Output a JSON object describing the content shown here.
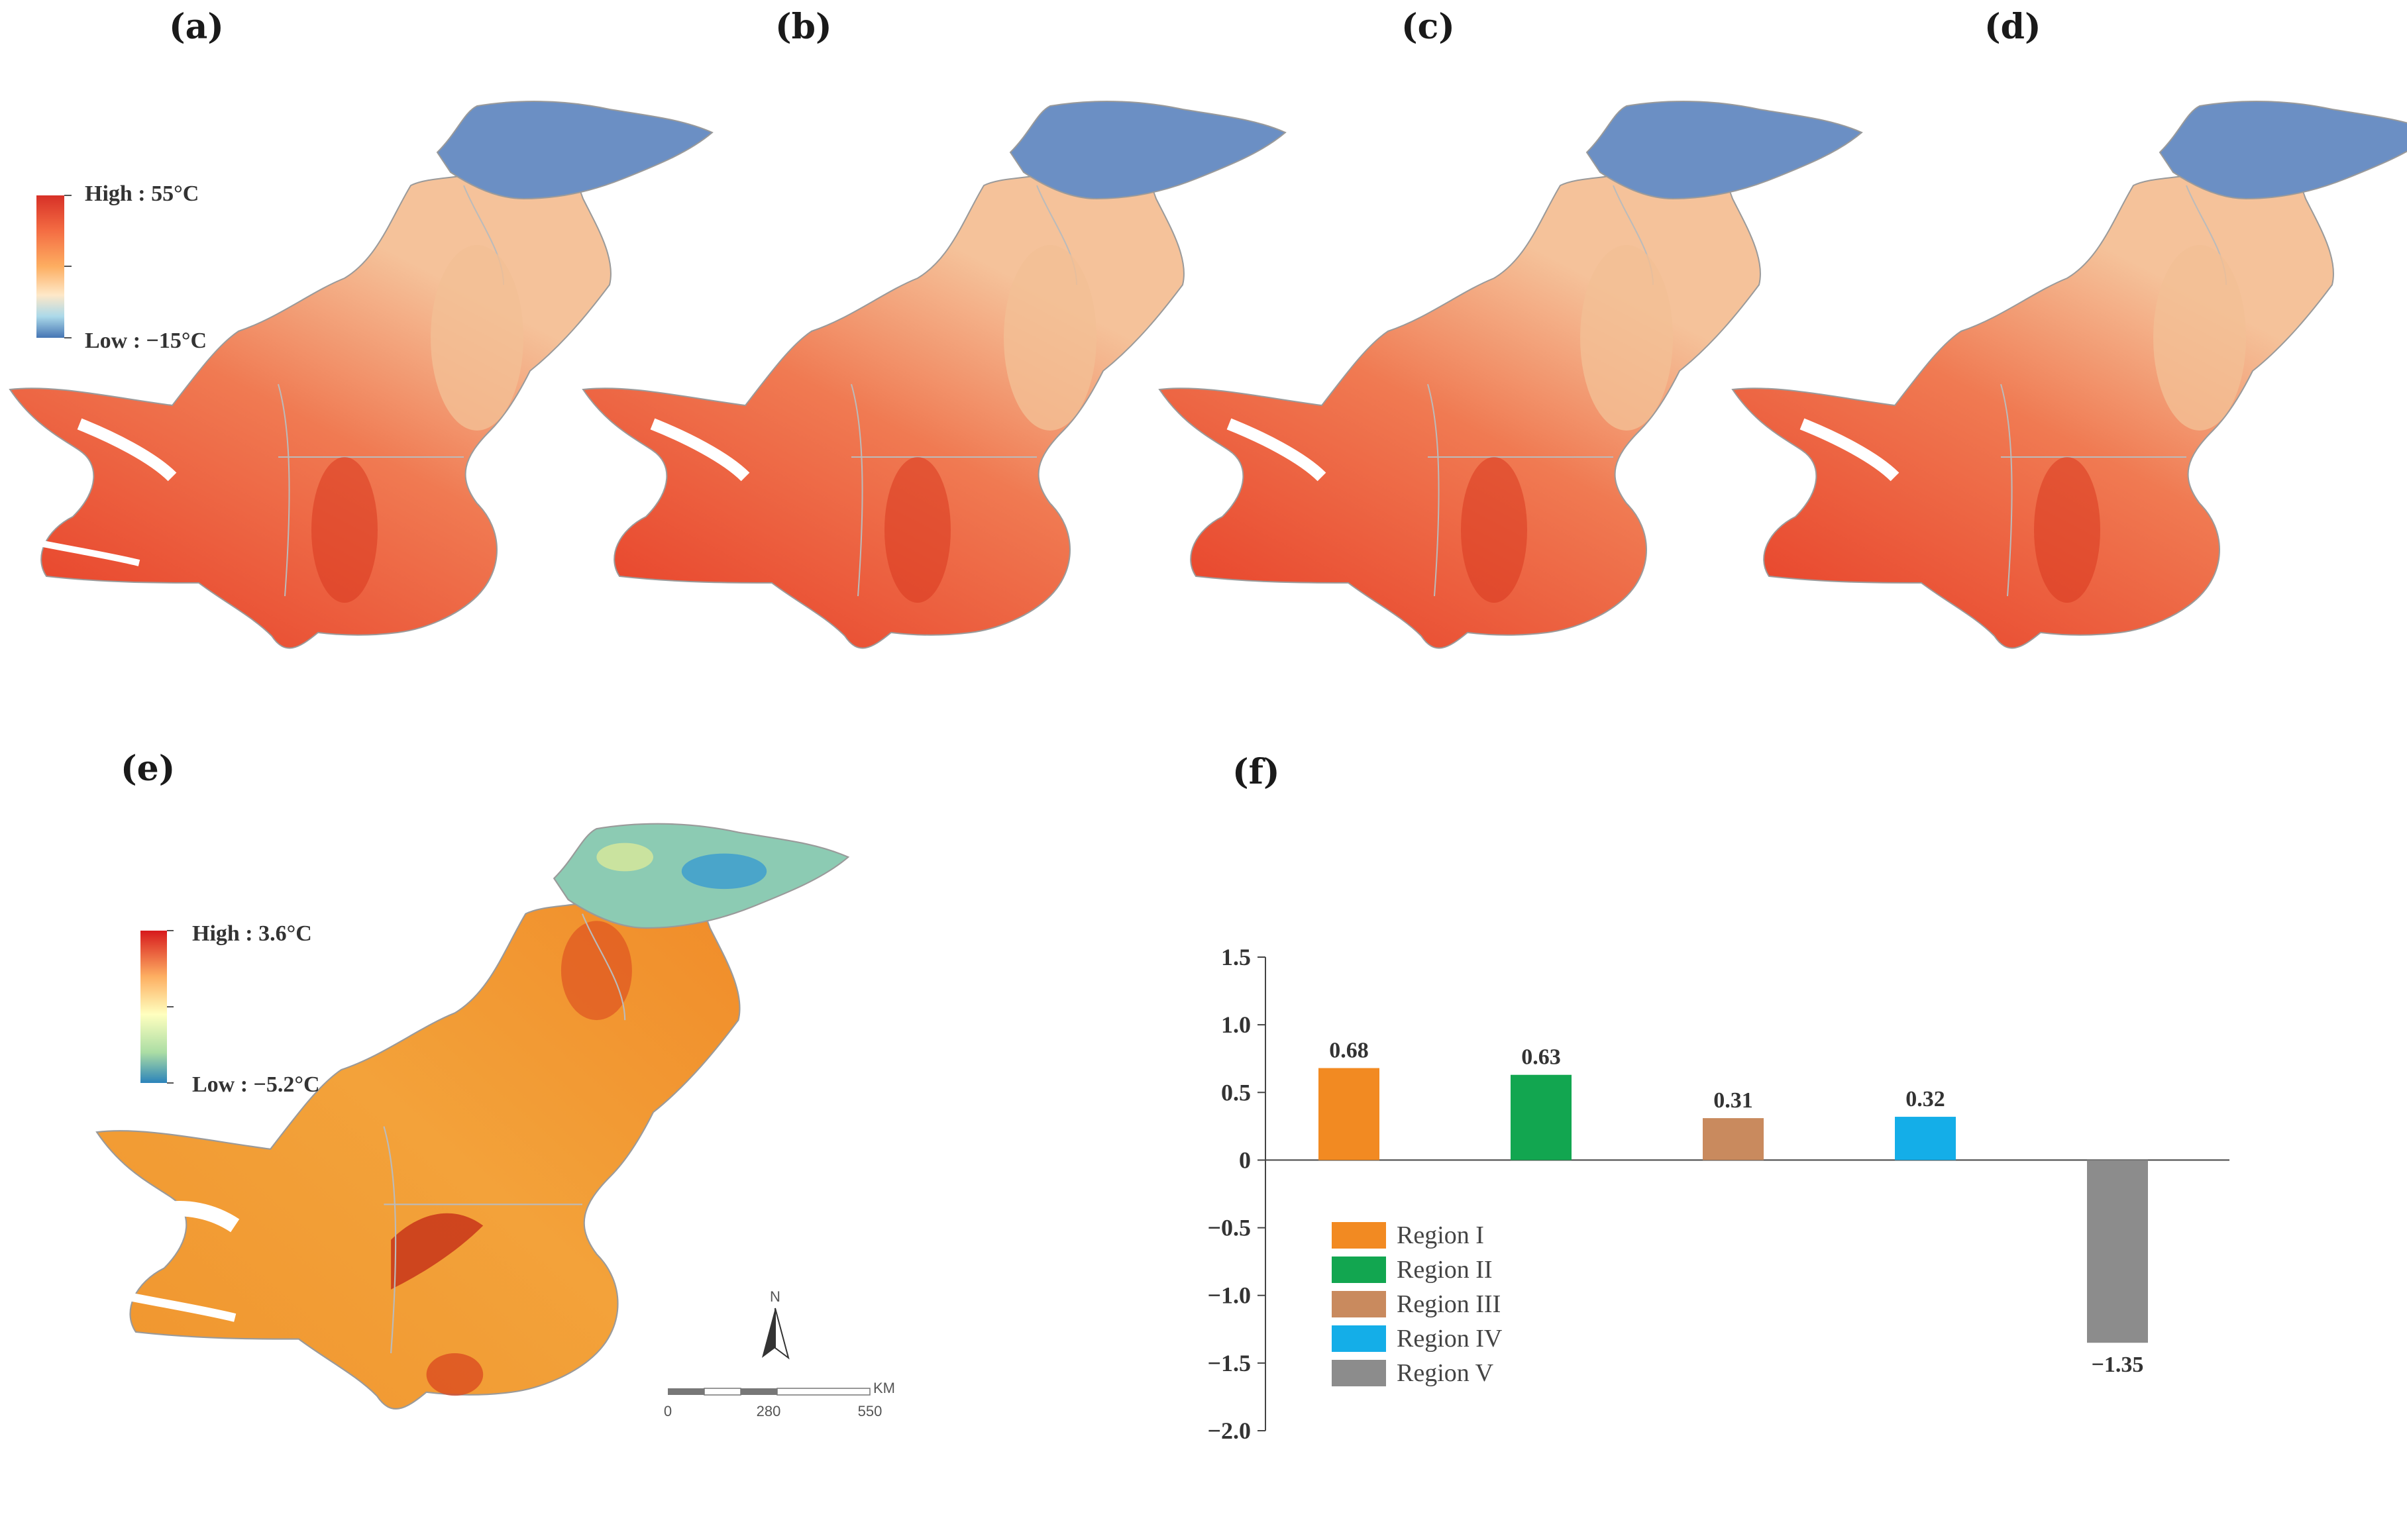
{
  "panels": {
    "a": "(a)",
    "b": "(b)",
    "c": "(c)",
    "d": "(d)",
    "e": "(e)",
    "f": "(f)"
  },
  "temperature_legend": {
    "high": "High : 55°C",
    "low": "Low : −15°C",
    "colors": [
      "#d73027",
      "#f46d43",
      "#fdae61",
      "#fee8c8",
      "#f7f7f0",
      "#abd9e9",
      "#4575b4"
    ]
  },
  "anomaly_legend": {
    "high": "High : 3.6°C",
    "low": "Low : −5.2°C",
    "colors": [
      "#d7191c",
      "#f46d43",
      "#fdae61",
      "#ffffbf",
      "#abdda4",
      "#4bb0c8",
      "#2b83ba"
    ]
  },
  "map_colors": {
    "hot": "#e8452c",
    "warm": "#f08a5d",
    "mild": "#f5c29a",
    "cold": "#6b8fc4",
    "boundary": "#9a9a9a",
    "anom_base": "#f3a23a",
    "anom_hot": "#d9421e",
    "anom_cool": "#8ccbb3",
    "anom_cold": "#3a9bd0"
  },
  "north_arrow": {
    "label": "N"
  },
  "scale_bar": {
    "ticks": [
      "0",
      "280",
      "550"
    ],
    "unit": "KM"
  },
  "chart_data": {
    "type": "bar",
    "categories": [
      "Region I",
      "Region II",
      "Region III",
      "Region IV",
      "Region V"
    ],
    "values": [
      0.68,
      0.63,
      0.31,
      0.32,
      -1.35
    ],
    "value_labels": [
      "0.68",
      "0.63",
      "0.31",
      "0.32",
      "−1.35"
    ],
    "colors": [
      "#f28a22",
      "#12a650",
      "#c98a5e",
      "#14aee8",
      "#8c8c8c"
    ],
    "ylim": [
      -2.0,
      1.5
    ],
    "yticks": [
      1.5,
      1.0,
      0.5,
      0,
      -0.5,
      -1.0,
      -1.5,
      -2.0
    ],
    "ytick_labels": [
      "1.5",
      "1.0",
      "0.5",
      "0",
      "−0.5",
      "−1.0",
      "−1.5",
      "−2.0"
    ],
    "legend": [
      "Region I",
      "Region II",
      "Region III",
      "Region IV",
      "Region V"
    ],
    "legend_position": "bottom-left",
    "title": "",
    "xlabel": "",
    "ylabel": ""
  }
}
